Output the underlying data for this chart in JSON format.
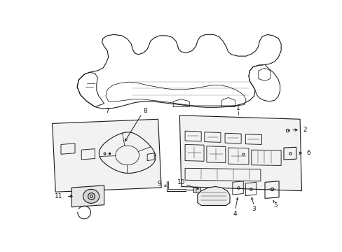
{
  "bg_color": "#ffffff",
  "line_color": "#1a1a1a",
  "panel_fill": "#f5f5f5",
  "fig_width": 4.89,
  "fig_height": 3.6,
  "dpi": 100
}
